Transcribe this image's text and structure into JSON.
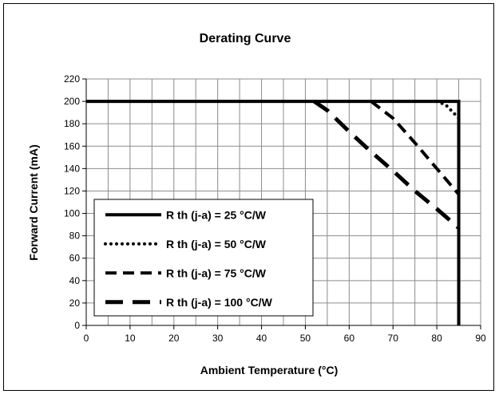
{
  "chart_data": {
    "type": "line",
    "title": "Derating Curve",
    "xlabel": "Ambient Temperature (°C)",
    "ylabel": "Forward Current (mA)",
    "xlim": [
      0,
      90
    ],
    "ylim": [
      0,
      220
    ],
    "x_ticks": [
      0,
      10,
      20,
      30,
      40,
      50,
      60,
      70,
      80,
      90
    ],
    "y_ticks": [
      0,
      20,
      40,
      60,
      80,
      100,
      120,
      140,
      160,
      180,
      200,
      220
    ],
    "x_minor_step": 5,
    "y_minor_step": 20,
    "grid": true,
    "legend_position": "bottom-left",
    "series": [
      {
        "name": "R th (j-a) =  25 °C/W",
        "style": "solid",
        "color": "#000000",
        "x": [
          0,
          85,
          85
        ],
        "y": [
          200,
          200,
          0
        ]
      },
      {
        "name": "R th (j-a) =  50 °C/W",
        "style": "dotted",
        "color": "#000000",
        "x": [
          80,
          82,
          84,
          85
        ],
        "y": [
          200,
          197,
          189,
          185
        ]
      },
      {
        "name": "R th (j-a) =  75 °C/W",
        "style": "dashed",
        "color": "#000000",
        "x": [
          65,
          70,
          75,
          80,
          85
        ],
        "y": [
          200,
          185,
          163,
          140,
          117
        ]
      },
      {
        "name": "R th (j-a) =  100 °C/W",
        "style": "long-dashed",
        "color": "#000000",
        "x": [
          52,
          55,
          60,
          65,
          70,
          75,
          80,
          85
        ],
        "y": [
          200,
          192,
          173,
          155,
          138,
          120,
          104,
          87
        ]
      }
    ]
  }
}
